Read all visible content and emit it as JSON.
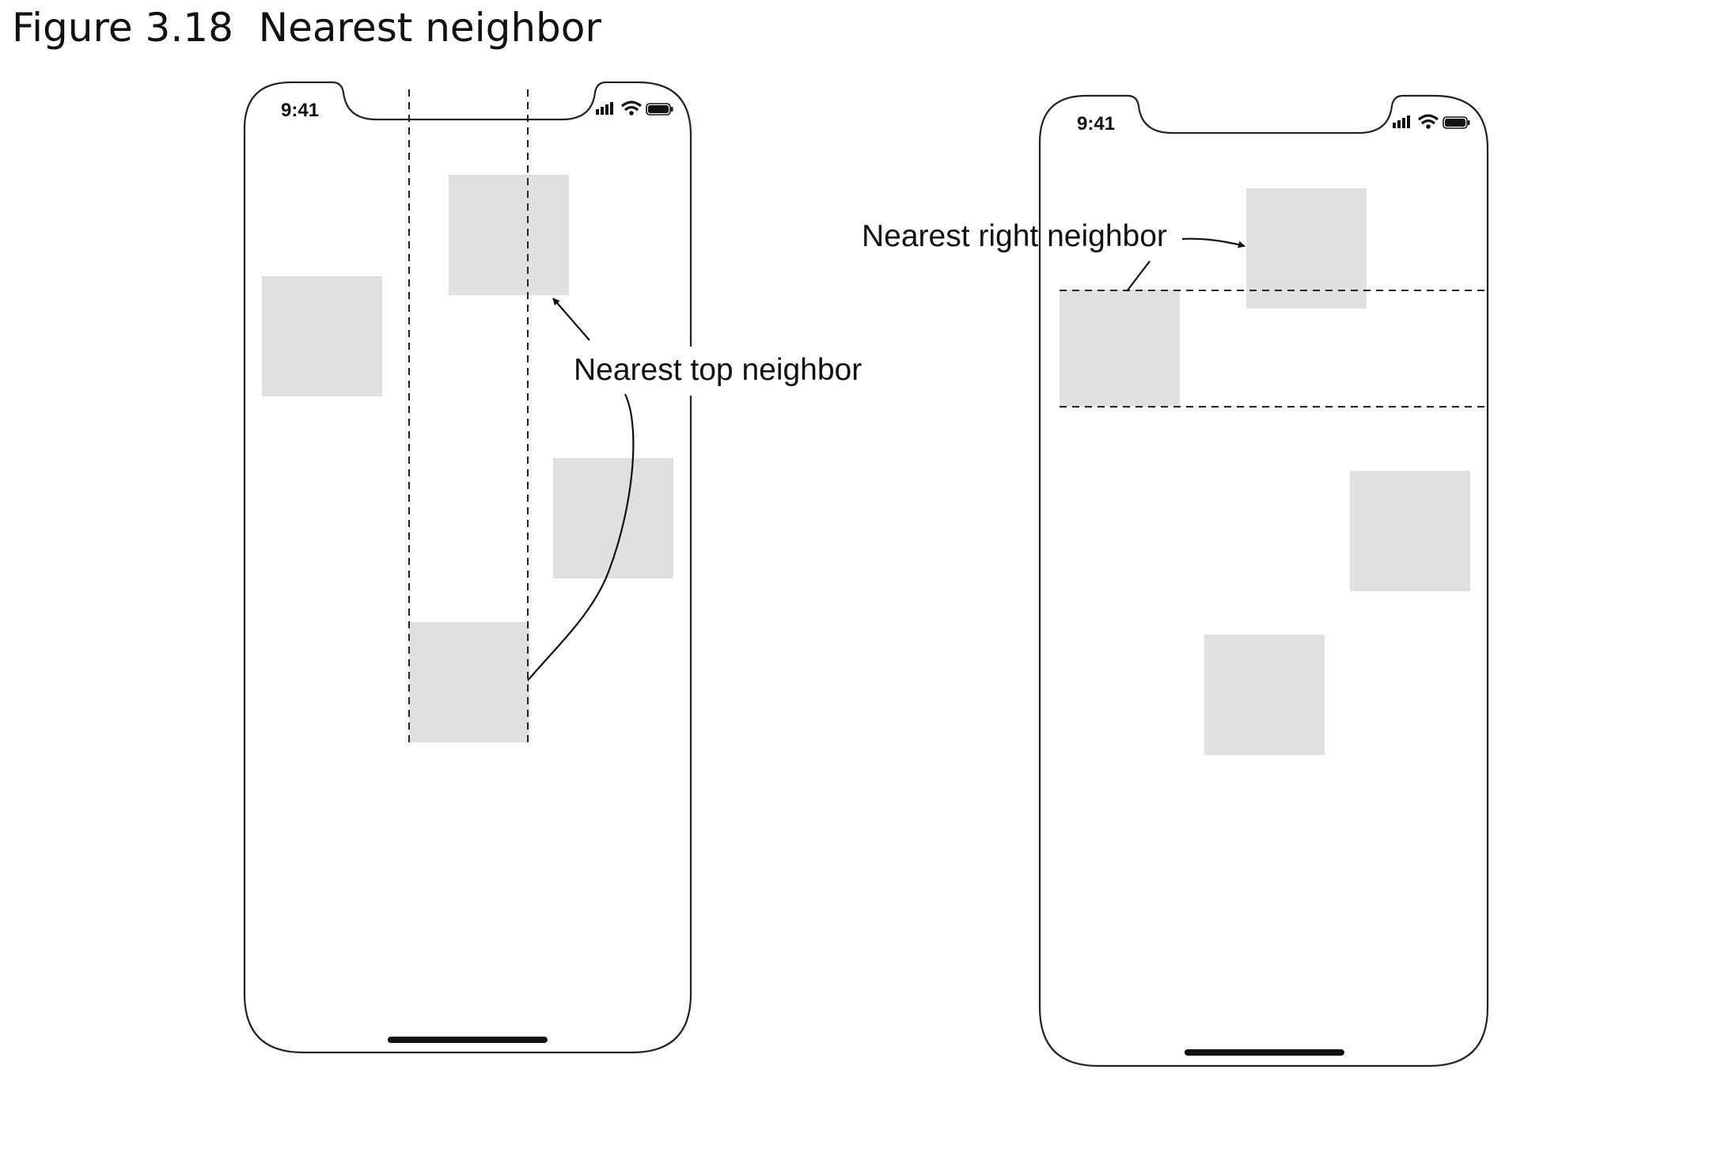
{
  "figure": {
    "caption": "Figure 3.18  Nearest neighbor"
  },
  "phones": [
    {
      "status_time": "9:41",
      "status_icons": [
        "cellular-signal-icon",
        "wifi-icon",
        "battery-icon"
      ],
      "callout": "Nearest top neighbor",
      "guide_orientation": "vertical"
    },
    {
      "status_time": "9:41",
      "status_icons": [
        "cellular-signal-icon",
        "wifi-icon",
        "battery-icon"
      ],
      "callout": "Nearest right neighbor",
      "guide_orientation": "horizontal"
    }
  ],
  "colors": {
    "tile": "#e0e0e0",
    "outline": "#222222",
    "text": "#111111",
    "background": "#ffffff"
  }
}
